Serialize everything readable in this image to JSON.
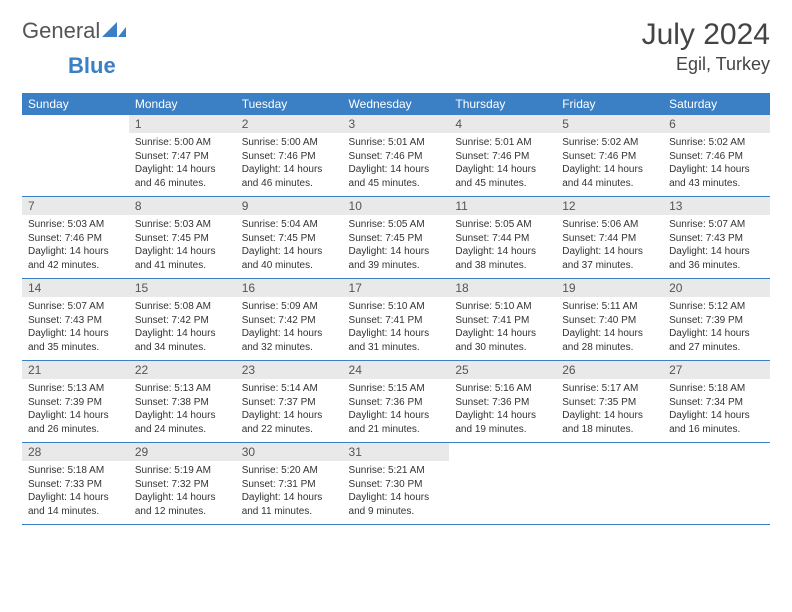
{
  "header": {
    "logo_general": "General",
    "logo_blue": "Blue",
    "month_title": "July 2024",
    "location": "Egil, Turkey"
  },
  "colors": {
    "header_bg": "#3b7fc4",
    "header_text": "#ffffff",
    "daynum_bg": "#e9e9e9",
    "border": "#3b7fc4",
    "body_text": "#333333"
  },
  "weekdays": [
    "Sunday",
    "Monday",
    "Tuesday",
    "Wednesday",
    "Thursday",
    "Friday",
    "Saturday"
  ],
  "weeks": [
    [
      {
        "day": "",
        "sunrise": "",
        "sunset": "",
        "daylight": ""
      },
      {
        "day": "1",
        "sunrise": "Sunrise: 5:00 AM",
        "sunset": "Sunset: 7:47 PM",
        "daylight": "Daylight: 14 hours and 46 minutes."
      },
      {
        "day": "2",
        "sunrise": "Sunrise: 5:00 AM",
        "sunset": "Sunset: 7:46 PM",
        "daylight": "Daylight: 14 hours and 46 minutes."
      },
      {
        "day": "3",
        "sunrise": "Sunrise: 5:01 AM",
        "sunset": "Sunset: 7:46 PM",
        "daylight": "Daylight: 14 hours and 45 minutes."
      },
      {
        "day": "4",
        "sunrise": "Sunrise: 5:01 AM",
        "sunset": "Sunset: 7:46 PM",
        "daylight": "Daylight: 14 hours and 45 minutes."
      },
      {
        "day": "5",
        "sunrise": "Sunrise: 5:02 AM",
        "sunset": "Sunset: 7:46 PM",
        "daylight": "Daylight: 14 hours and 44 minutes."
      },
      {
        "day": "6",
        "sunrise": "Sunrise: 5:02 AM",
        "sunset": "Sunset: 7:46 PM",
        "daylight": "Daylight: 14 hours and 43 minutes."
      }
    ],
    [
      {
        "day": "7",
        "sunrise": "Sunrise: 5:03 AM",
        "sunset": "Sunset: 7:46 PM",
        "daylight": "Daylight: 14 hours and 42 minutes."
      },
      {
        "day": "8",
        "sunrise": "Sunrise: 5:03 AM",
        "sunset": "Sunset: 7:45 PM",
        "daylight": "Daylight: 14 hours and 41 minutes."
      },
      {
        "day": "9",
        "sunrise": "Sunrise: 5:04 AM",
        "sunset": "Sunset: 7:45 PM",
        "daylight": "Daylight: 14 hours and 40 minutes."
      },
      {
        "day": "10",
        "sunrise": "Sunrise: 5:05 AM",
        "sunset": "Sunset: 7:45 PM",
        "daylight": "Daylight: 14 hours and 39 minutes."
      },
      {
        "day": "11",
        "sunrise": "Sunrise: 5:05 AM",
        "sunset": "Sunset: 7:44 PM",
        "daylight": "Daylight: 14 hours and 38 minutes."
      },
      {
        "day": "12",
        "sunrise": "Sunrise: 5:06 AM",
        "sunset": "Sunset: 7:44 PM",
        "daylight": "Daylight: 14 hours and 37 minutes."
      },
      {
        "day": "13",
        "sunrise": "Sunrise: 5:07 AM",
        "sunset": "Sunset: 7:43 PM",
        "daylight": "Daylight: 14 hours and 36 minutes."
      }
    ],
    [
      {
        "day": "14",
        "sunrise": "Sunrise: 5:07 AM",
        "sunset": "Sunset: 7:43 PM",
        "daylight": "Daylight: 14 hours and 35 minutes."
      },
      {
        "day": "15",
        "sunrise": "Sunrise: 5:08 AM",
        "sunset": "Sunset: 7:42 PM",
        "daylight": "Daylight: 14 hours and 34 minutes."
      },
      {
        "day": "16",
        "sunrise": "Sunrise: 5:09 AM",
        "sunset": "Sunset: 7:42 PM",
        "daylight": "Daylight: 14 hours and 32 minutes."
      },
      {
        "day": "17",
        "sunrise": "Sunrise: 5:10 AM",
        "sunset": "Sunset: 7:41 PM",
        "daylight": "Daylight: 14 hours and 31 minutes."
      },
      {
        "day": "18",
        "sunrise": "Sunrise: 5:10 AM",
        "sunset": "Sunset: 7:41 PM",
        "daylight": "Daylight: 14 hours and 30 minutes."
      },
      {
        "day": "19",
        "sunrise": "Sunrise: 5:11 AM",
        "sunset": "Sunset: 7:40 PM",
        "daylight": "Daylight: 14 hours and 28 minutes."
      },
      {
        "day": "20",
        "sunrise": "Sunrise: 5:12 AM",
        "sunset": "Sunset: 7:39 PM",
        "daylight": "Daylight: 14 hours and 27 minutes."
      }
    ],
    [
      {
        "day": "21",
        "sunrise": "Sunrise: 5:13 AM",
        "sunset": "Sunset: 7:39 PM",
        "daylight": "Daylight: 14 hours and 26 minutes."
      },
      {
        "day": "22",
        "sunrise": "Sunrise: 5:13 AM",
        "sunset": "Sunset: 7:38 PM",
        "daylight": "Daylight: 14 hours and 24 minutes."
      },
      {
        "day": "23",
        "sunrise": "Sunrise: 5:14 AM",
        "sunset": "Sunset: 7:37 PM",
        "daylight": "Daylight: 14 hours and 22 minutes."
      },
      {
        "day": "24",
        "sunrise": "Sunrise: 5:15 AM",
        "sunset": "Sunset: 7:36 PM",
        "daylight": "Daylight: 14 hours and 21 minutes."
      },
      {
        "day": "25",
        "sunrise": "Sunrise: 5:16 AM",
        "sunset": "Sunset: 7:36 PM",
        "daylight": "Daylight: 14 hours and 19 minutes."
      },
      {
        "day": "26",
        "sunrise": "Sunrise: 5:17 AM",
        "sunset": "Sunset: 7:35 PM",
        "daylight": "Daylight: 14 hours and 18 minutes."
      },
      {
        "day": "27",
        "sunrise": "Sunrise: 5:18 AM",
        "sunset": "Sunset: 7:34 PM",
        "daylight": "Daylight: 14 hours and 16 minutes."
      }
    ],
    [
      {
        "day": "28",
        "sunrise": "Sunrise: 5:18 AM",
        "sunset": "Sunset: 7:33 PM",
        "daylight": "Daylight: 14 hours and 14 minutes."
      },
      {
        "day": "29",
        "sunrise": "Sunrise: 5:19 AM",
        "sunset": "Sunset: 7:32 PM",
        "daylight": "Daylight: 14 hours and 12 minutes."
      },
      {
        "day": "30",
        "sunrise": "Sunrise: 5:20 AM",
        "sunset": "Sunset: 7:31 PM",
        "daylight": "Daylight: 14 hours and 11 minutes."
      },
      {
        "day": "31",
        "sunrise": "Sunrise: 5:21 AM",
        "sunset": "Sunset: 7:30 PM",
        "daylight": "Daylight: 14 hours and 9 minutes."
      },
      {
        "day": "",
        "sunrise": "",
        "sunset": "",
        "daylight": ""
      },
      {
        "day": "",
        "sunrise": "",
        "sunset": "",
        "daylight": ""
      },
      {
        "day": "",
        "sunrise": "",
        "sunset": "",
        "daylight": ""
      }
    ]
  ]
}
